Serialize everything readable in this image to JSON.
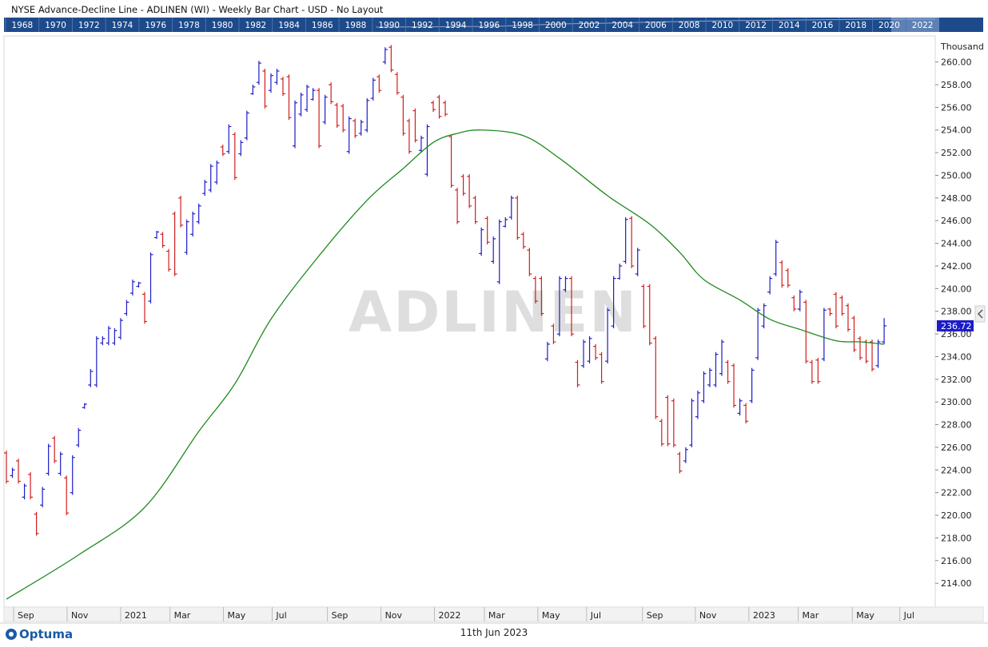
{
  "header": {
    "title": "NYSE  Advance-Decline Line - ADLINEN (WI) - Weekly Bar Chart - USD - No Layout"
  },
  "navigator": {
    "years": [
      1968,
      1970,
      1972,
      1974,
      1976,
      1978,
      1980,
      1982,
      1984,
      1986,
      1988,
      1990,
      1992,
      1994,
      1996,
      1998,
      2000,
      2002,
      2004,
      2006,
      2008,
      2010,
      2012,
      2014,
      2016,
      2018,
      2020,
      2022
    ]
  },
  "chart_data": {
    "type": "ohlc",
    "watermark": "ADLINEN",
    "y_unit": "Thousand",
    "up_color": "#1c1cc8",
    "down_color": "#d01e1e",
    "bars": [
      [
        225.5,
        225.7,
        222.8,
        223.0
      ],
      [
        223.5,
        224.2,
        223.3,
        224.0
      ],
      [
        224.8,
        225.0,
        222.8,
        223.0
      ],
      [
        221.6,
        222.8,
        221.4,
        222.6
      ],
      [
        223.6,
        223.8,
        221.4,
        221.6
      ],
      [
        220.1,
        220.3,
        218.2,
        218.4
      ],
      [
        220.9,
        222.5,
        220.7,
        222.3
      ],
      [
        223.7,
        226.3,
        223.5,
        226.1
      ],
      [
        226.8,
        227.0,
        224.6,
        224.8
      ],
      [
        223.7,
        225.6,
        223.5,
        225.4
      ],
      [
        223.3,
        223.5,
        220.0,
        220.2
      ],
      [
        222.0,
        225.3,
        221.8,
        225.1
      ],
      [
        226.2,
        227.7,
        226.0,
        227.5
      ],
      [
        229.5,
        229.9,
        229.4,
        229.8
      ],
      [
        231.5,
        232.9,
        231.3,
        232.7
      ],
      [
        231.5,
        235.8,
        231.3,
        235.6
      ],
      [
        235.2,
        235.8,
        235.0,
        235.6
      ],
      [
        235.2,
        236.7,
        235.0,
        236.5
      ],
      [
        235.2,
        236.5,
        235.0,
        236.3
      ],
      [
        235.7,
        237.4,
        235.5,
        237.2
      ],
      [
        237.8,
        239.0,
        237.6,
        238.8
      ],
      [
        239.6,
        240.8,
        239.4,
        240.6
      ],
      [
        240.2,
        240.6,
        240.1,
        240.5
      ],
      [
        239.5,
        239.7,
        236.9,
        237.1
      ],
      [
        238.9,
        243.2,
        238.7,
        243.0
      ],
      [
        244.5,
        245.1,
        244.4,
        245.0
      ],
      [
        244.8,
        245.0,
        243.6,
        243.8
      ],
      [
        243.3,
        243.5,
        241.5,
        241.7
      ],
      [
        246.6,
        246.8,
        241.1,
        241.3
      ],
      [
        248.0,
        248.2,
        245.4,
        245.6
      ],
      [
        243.2,
        246.1,
        243.0,
        245.9
      ],
      [
        244.8,
        246.8,
        244.6,
        246.6
      ],
      [
        245.9,
        247.5,
        245.7,
        247.3
      ],
      [
        248.4,
        249.6,
        248.2,
        249.4
      ],
      [
        248.7,
        251.0,
        248.5,
        250.8
      ],
      [
        249.4,
        251.3,
        249.2,
        251.1
      ],
      [
        252.5,
        252.7,
        251.7,
        251.9
      ],
      [
        252.1,
        254.5,
        251.9,
        254.3
      ],
      [
        253.6,
        253.8,
        249.6,
        249.8
      ],
      [
        251.9,
        253.1,
        251.7,
        252.9
      ],
      [
        253.3,
        255.7,
        253.1,
        255.5
      ],
      [
        257.2,
        258.0,
        257.1,
        257.8
      ],
      [
        258.2,
        260.1,
        258.0,
        259.9
      ],
      [
        259.2,
        259.4,
        255.9,
        256.1
      ],
      [
        257.5,
        259.0,
        257.3,
        258.8
      ],
      [
        258.2,
        259.4,
        258.0,
        259.2
      ],
      [
        258.5,
        258.7,
        257.0,
        257.2
      ],
      [
        258.7,
        258.9,
        254.9,
        255.1
      ],
      [
        252.6,
        256.6,
        252.4,
        256.4
      ],
      [
        255.4,
        257.3,
        255.2,
        257.1
      ],
      [
        255.8,
        258.0,
        255.6,
        257.8
      ],
      [
        256.7,
        257.7,
        256.6,
        257.5
      ],
      [
        257.5,
        257.7,
        252.4,
        252.6
      ],
      [
        254.7,
        257.1,
        254.5,
        256.9
      ],
      [
        258.0,
        258.2,
        256.3,
        256.5
      ],
      [
        256.2,
        256.4,
        254.2,
        254.4
      ],
      [
        256.1,
        256.3,
        253.8,
        254.0
      ],
      [
        252.1,
        255.2,
        251.9,
        255.0
      ],
      [
        254.8,
        255.0,
        253.3,
        253.5
      ],
      [
        253.7,
        254.9,
        253.5,
        254.7
      ],
      [
        254.0,
        256.8,
        253.8,
        256.6
      ],
      [
        256.8,
        258.6,
        256.6,
        258.4
      ],
      [
        258.7,
        258.9,
        257.3,
        257.5
      ],
      [
        260.0,
        261.3,
        259.8,
        261.1
      ],
      [
        261.3,
        261.5,
        259.1,
        259.3
      ],
      [
        258.9,
        259.1,
        257.1,
        257.3
      ],
      [
        256.9,
        257.1,
        253.5,
        253.7
      ],
      [
        254.8,
        255.0,
        251.9,
        252.1
      ],
      [
        255.7,
        255.9,
        252.9,
        253.1
      ],
      [
        252.2,
        253.5,
        252.0,
        253.3
      ],
      [
        250.1,
        254.5,
        249.9,
        254.3
      ],
      [
        256.4,
        256.6,
        255.6,
        255.8
      ],
      [
        256.9,
        257.1,
        255.0,
        255.2
      ],
      [
        256.4,
        256.6,
        255.2,
        255.4
      ],
      [
        253.4,
        253.6,
        248.9,
        249.1
      ],
      [
        248.7,
        248.9,
        245.7,
        245.9
      ],
      [
        249.9,
        250.1,
        248.2,
        248.4
      ],
      [
        249.9,
        250.1,
        247.1,
        247.3
      ],
      [
        248.0,
        248.2,
        245.7,
        245.9
      ],
      [
        243.1,
        245.4,
        242.9,
        245.2
      ],
      [
        246.2,
        246.4,
        243.9,
        244.1
      ],
      [
        242.4,
        244.6,
        242.2,
        244.4
      ],
      [
        240.6,
        246.1,
        240.4,
        245.9
      ],
      [
        245.5,
        246.3,
        245.4,
        246.1
      ],
      [
        246.3,
        248.2,
        246.1,
        248.0
      ],
      [
        248.0,
        248.2,
        244.3,
        244.5
      ],
      [
        244.8,
        245.0,
        243.5,
        243.7
      ],
      [
        243.4,
        243.6,
        241.1,
        241.3
      ],
      [
        240.9,
        241.1,
        238.7,
        238.9
      ],
      [
        240.9,
        241.1,
        237.6,
        237.8
      ],
      [
        233.8,
        235.3,
        233.6,
        235.1
      ],
      [
        236.7,
        236.9,
        235.1,
        235.3
      ],
      [
        236.0,
        241.1,
        235.8,
        240.9
      ],
      [
        239.9,
        241.1,
        239.7,
        240.9
      ],
      [
        240.9,
        241.1,
        235.8,
        236.0
      ],
      [
        233.5,
        233.7,
        231.3,
        231.5
      ],
      [
        233.2,
        235.5,
        233.0,
        235.3
      ],
      [
        233.6,
        235.8,
        233.4,
        235.6
      ],
      [
        234.9,
        235.1,
        233.7,
        233.9
      ],
      [
        234.2,
        234.4,
        231.6,
        231.8
      ],
      [
        233.6,
        238.3,
        233.4,
        238.1
      ],
      [
        236.7,
        241.1,
        236.5,
        240.9
      ],
      [
        240.9,
        242.2,
        240.8,
        242.0
      ],
      [
        242.4,
        246.3,
        242.2,
        246.1
      ],
      [
        246.2,
        246.4,
        241.8,
        242.0
      ],
      [
        241.3,
        243.6,
        241.1,
        243.4
      ],
      [
        240.2,
        240.4,
        236.5,
        236.7
      ],
      [
        240.2,
        240.4,
        235.0,
        235.2
      ],
      [
        235.6,
        235.8,
        228.5,
        228.7
      ],
      [
        228.3,
        228.5,
        226.1,
        226.3
      ],
      [
        230.4,
        230.6,
        226.1,
        226.3
      ],
      [
        230.1,
        230.3,
        226.0,
        226.2
      ],
      [
        225.4,
        225.6,
        223.7,
        223.9
      ],
      [
        224.8,
        226.0,
        224.6,
        225.8
      ],
      [
        226.2,
        230.3,
        226.0,
        230.1
      ],
      [
        228.7,
        231.0,
        228.5,
        230.8
      ],
      [
        230.1,
        232.7,
        229.9,
        232.5
      ],
      [
        231.5,
        233.0,
        231.3,
        232.8
      ],
      [
        231.5,
        234.4,
        231.3,
        234.2
      ],
      [
        232.5,
        235.5,
        232.3,
        235.3
      ],
      [
        233.5,
        233.7,
        231.6,
        231.8
      ],
      [
        233.2,
        233.4,
        229.5,
        229.7
      ],
      [
        229.0,
        230.3,
        228.8,
        230.1
      ],
      [
        229.7,
        229.9,
        228.1,
        228.3
      ],
      [
        230.1,
        233.0,
        229.9,
        232.8
      ],
      [
        233.9,
        238.3,
        233.7,
        238.1
      ],
      [
        236.7,
        238.7,
        236.5,
        238.5
      ],
      [
        239.7,
        241.1,
        239.5,
        240.9
      ],
      [
        241.3,
        244.3,
        241.1,
        244.1
      ],
      [
        242.3,
        242.5,
        240.1,
        240.3
      ],
      [
        241.6,
        241.8,
        240.1,
        240.3
      ],
      [
        239.2,
        239.4,
        238.0,
        238.2
      ],
      [
        238.2,
        239.9,
        238.0,
        239.7
      ],
      [
        238.8,
        239.0,
        233.4,
        233.6
      ],
      [
        233.5,
        233.7,
        231.6,
        231.8
      ],
      [
        233.7,
        233.9,
        231.6,
        231.8
      ],
      [
        233.8,
        238.3,
        233.6,
        238.1
      ],
      [
        238.2,
        238.3,
        237.6,
        237.8
      ],
      [
        239.5,
        239.7,
        236.5,
        236.7
      ],
      [
        239.2,
        239.4,
        237.6,
        237.8
      ],
      [
        238.5,
        238.7,
        236.2,
        236.4
      ],
      [
        237.4,
        237.6,
        234.4,
        234.6
      ],
      [
        235.6,
        235.8,
        233.7,
        233.9
      ],
      [
        235.3,
        235.5,
        233.4,
        233.6
      ],
      [
        235.3,
        235.5,
        232.7,
        232.9
      ],
      [
        233.2,
        235.5,
        233.0,
        235.3
      ],
      [
        235.3,
        237.4,
        235.1,
        236.72
      ]
    ],
    "ma": {
      "color": "#1f8a1f",
      "x": [
        0,
        12,
        23,
        32,
        38,
        44,
        52,
        60,
        66,
        71,
        75,
        79,
        86,
        92,
        100,
        107,
        112,
        116,
        122,
        127,
        132,
        138,
        142,
        146
      ],
      "values": [
        212.6,
        216.5,
        220.7,
        227.4,
        231.6,
        237.3,
        242.9,
        247.8,
        250.6,
        252.9,
        253.7,
        254.0,
        253.5,
        251.5,
        248.2,
        245.7,
        243.2,
        240.8,
        239.0,
        237.3,
        236.4,
        235.4,
        235.3,
        235.1
      ]
    },
    "xlim": [
      -0.4,
      154.5
    ],
    "xticks": [
      {
        "value": 1.2,
        "label": "Sep"
      },
      {
        "value": 10.1,
        "label": "Nov"
      },
      {
        "value": 19.0,
        "label": "2021"
      },
      {
        "value": 27.2,
        "label": "Mar"
      },
      {
        "value": 36.1,
        "label": "May"
      },
      {
        "value": 44.2,
        "label": "Jul"
      },
      {
        "value": 53.4,
        "label": "Sep"
      },
      {
        "value": 62.3,
        "label": "Nov"
      },
      {
        "value": 71.2,
        "label": "2022"
      },
      {
        "value": 79.5,
        "label": "Mar"
      },
      {
        "value": 88.4,
        "label": "May"
      },
      {
        "value": 96.5,
        "label": "Jul"
      },
      {
        "value": 105.8,
        "label": "Sep"
      },
      {
        "value": 114.6,
        "label": "Nov"
      },
      {
        "value": 123.5,
        "label": "2023"
      },
      {
        "value": 131.7,
        "label": "Mar"
      },
      {
        "value": 140.7,
        "label": "May"
      },
      {
        "value": 148.6,
        "label": "Jul"
      }
    ],
    "ylim": [
      211.9,
      262.3
    ],
    "yticks": [
      {
        "value": 214,
        "label": "214.00"
      },
      {
        "value": 216,
        "label": "216.00"
      },
      {
        "value": 218,
        "label": "218.00"
      },
      {
        "value": 220,
        "label": "220.00"
      },
      {
        "value": 222,
        "label": "222.00"
      },
      {
        "value": 224,
        "label": "224.00"
      },
      {
        "value": 226,
        "label": "226.00"
      },
      {
        "value": 228,
        "label": "228.00"
      },
      {
        "value": 230,
        "label": "230.00"
      },
      {
        "value": 232,
        "label": "232.00"
      },
      {
        "value": 234,
        "label": "234.00"
      },
      {
        "value": 236,
        "label": "236.00"
      },
      {
        "value": 238,
        "label": "238.00"
      },
      {
        "value": 240,
        "label": "240.00"
      },
      {
        "value": 242,
        "label": "242.00"
      },
      {
        "value": 244,
        "label": "244.00"
      },
      {
        "value": 246,
        "label": "246.00"
      },
      {
        "value": 248,
        "label": "248.00"
      },
      {
        "value": 250,
        "label": "250.00"
      },
      {
        "value": 252,
        "label": "252.00"
      },
      {
        "value": 254,
        "label": "254.00"
      },
      {
        "value": 256,
        "label": "256.00"
      },
      {
        "value": 258,
        "label": "258.00"
      },
      {
        "value": 260,
        "label": "260.00"
      }
    ]
  },
  "footer": {
    "brand": "Optuma",
    "date": "11th Jun 2023"
  }
}
